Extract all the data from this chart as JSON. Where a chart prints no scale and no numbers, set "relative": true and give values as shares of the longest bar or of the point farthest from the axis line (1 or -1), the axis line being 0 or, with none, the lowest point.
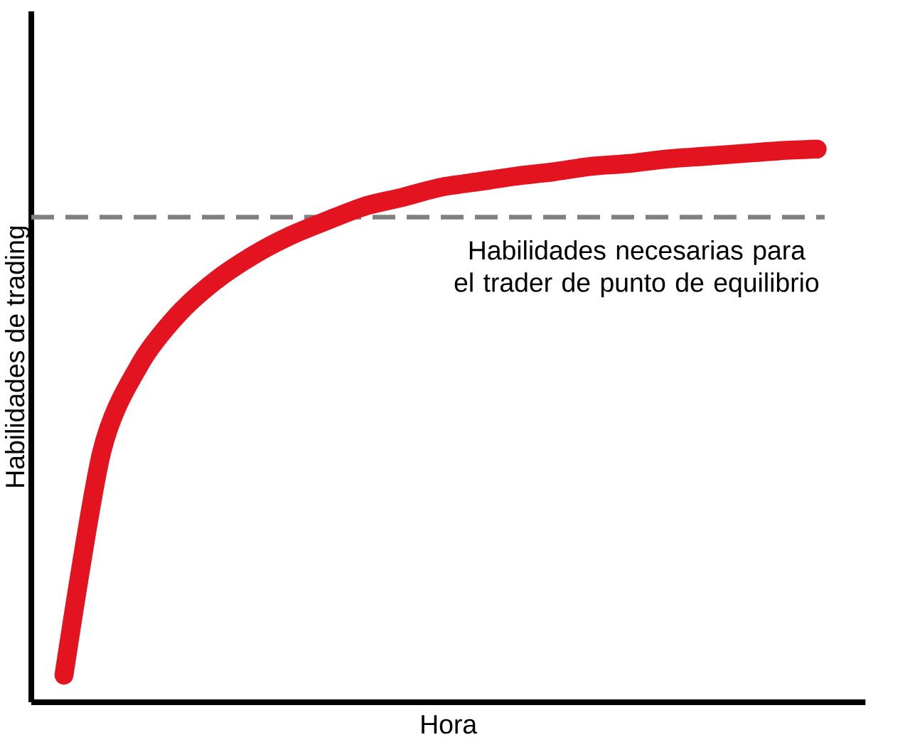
{
  "chart_data": {
    "type": "line",
    "relative": true,
    "xlabel": "Hora",
    "ylabel": "Habilidades de trading",
    "categories": [
      null,
      null,
      null,
      null,
      null,
      null,
      null,
      null,
      null,
      null,
      null,
      null,
      null,
      null,
      null,
      null,
      null,
      null,
      null,
      null,
      null
    ],
    "series": [
      {
        "color": "#e3141f",
        "values": [
          0.049,
          0.452,
          0.609,
          0.699,
          0.761,
          0.807,
          0.843,
          0.871,
          0.897,
          0.913,
          0.931,
          0.941,
          0.951,
          0.959,
          0.969,
          0.974,
          0.982,
          0.987,
          0.992,
          0.997,
          1.0
        ]
      }
    ],
    "ref_lines": [
      {
        "axis": "y",
        "value": 0.877,
        "label": "Habilidades necesarias para el trader de punto de equilibrio",
        "color": "#808080",
        "line_style": "dashed"
      }
    ]
  }
}
